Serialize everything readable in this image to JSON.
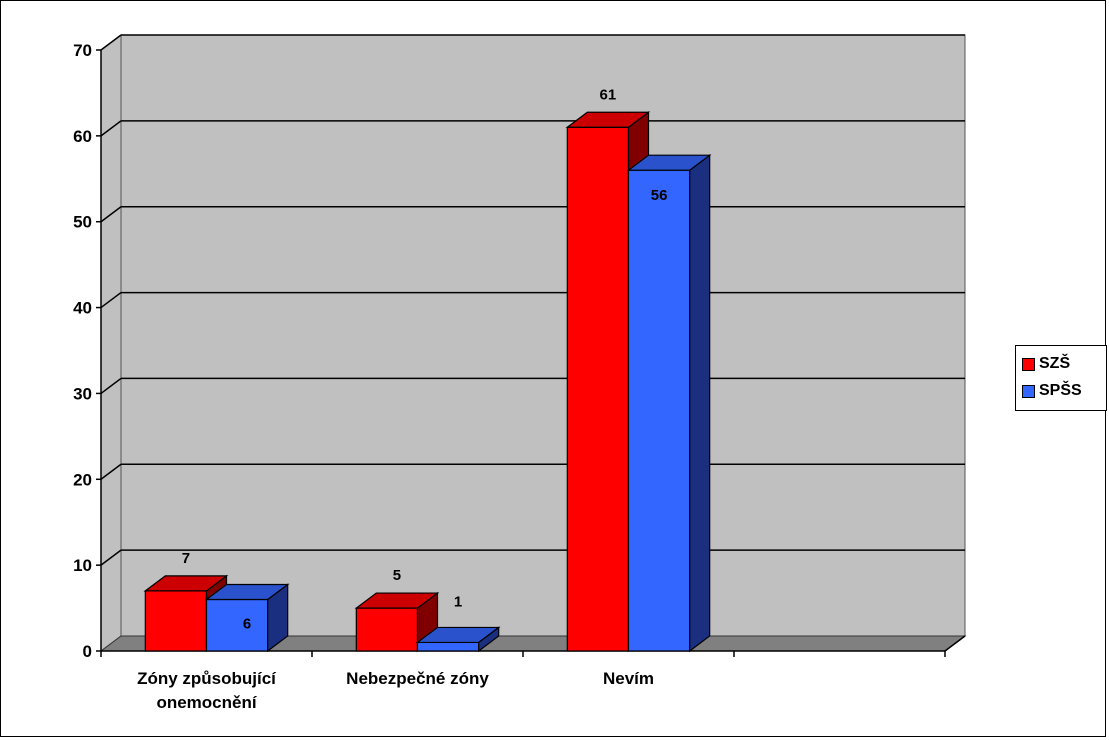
{
  "chart_data": {
    "type": "bar",
    "categories": [
      "Zóny způsobující\nonemocnění",
      "Nebezpečné zóny",
      "Nevím",
      ""
    ],
    "series": [
      {
        "name": "SZŠ",
        "values": [
          7,
          5,
          61,
          null
        ],
        "color": "#ff0000",
        "side_color": "#800000",
        "top_color": "#cc0000"
      },
      {
        "name": "SPŠS",
        "values": [
          6,
          1,
          56,
          null
        ],
        "color": "#3366ff",
        "side_color": "#1a2f80",
        "top_color": "#2a52cc"
      }
    ],
    "ylim": [
      0,
      70
    ],
    "yticks": [
      0,
      10,
      20,
      30,
      40,
      50,
      60,
      70
    ],
    "grid": true,
    "style": "3d-clustered-column",
    "wall_color": "#c0c0c0",
    "floor_color": "#808080",
    "legend": {
      "placement": "right",
      "entries": [
        "SZŠ",
        "SPŠS"
      ]
    }
  }
}
